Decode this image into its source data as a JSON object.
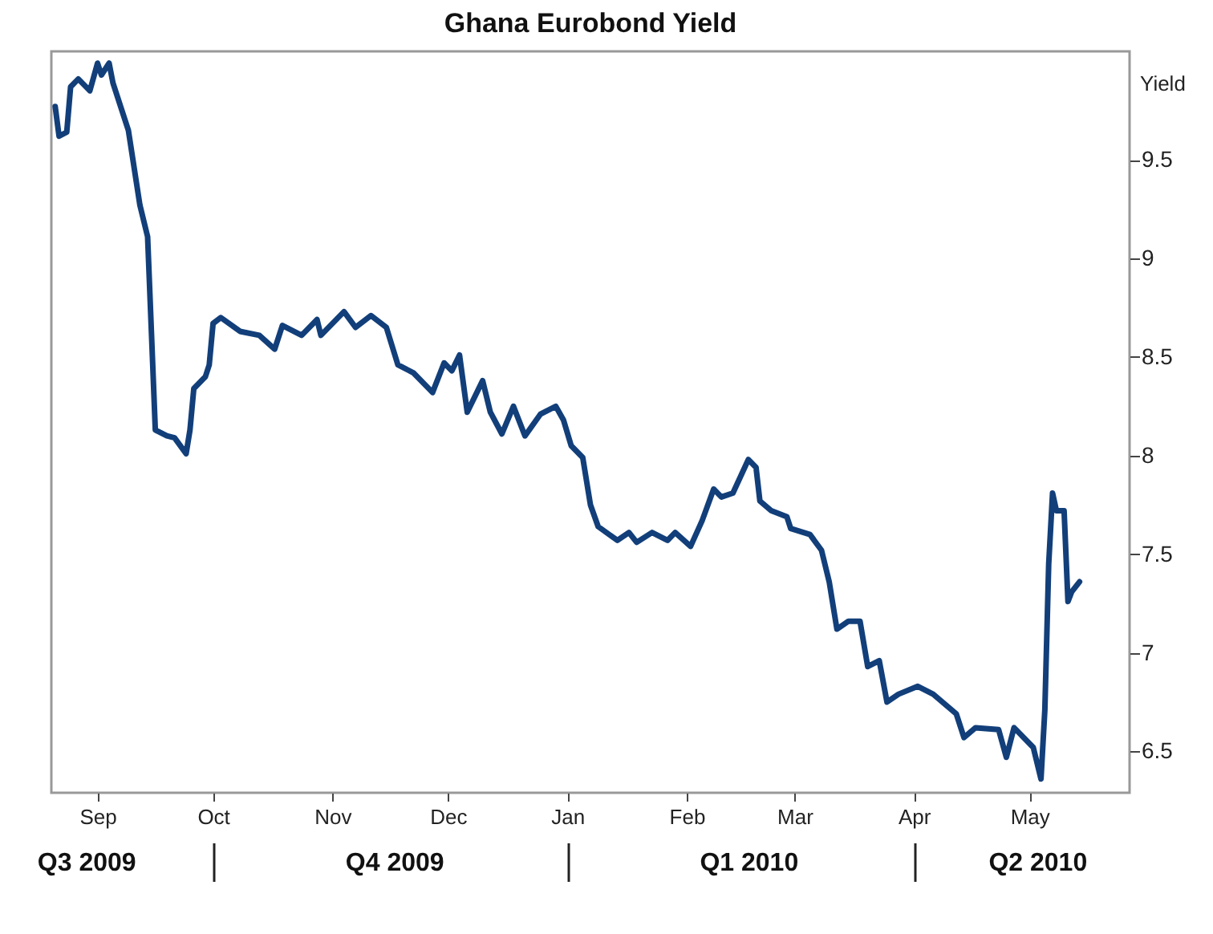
{
  "chart_data": {
    "type": "line",
    "title": "Ghana Eurobond Yield",
    "ylabel": "Yield",
    "xlim": [
      "2009-08-20",
      "2010-05-27"
    ],
    "ylim": [
      6.29,
      10.05
    ],
    "xticks": [
      {
        "value": "2009-09-01",
        "label": "Sep"
      },
      {
        "value": "2009-10-01",
        "label": "Oct"
      },
      {
        "value": "2009-11-01",
        "label": "Nov"
      },
      {
        "value": "2009-12-01",
        "label": "Dec"
      },
      {
        "value": "2010-01-01",
        "label": "Jan"
      },
      {
        "value": "2010-02-01",
        "label": "Feb"
      },
      {
        "value": "2010-03-01",
        "label": "Mar"
      },
      {
        "value": "2010-04-01",
        "label": "Apr"
      },
      {
        "value": "2010-05-01",
        "label": "May"
      }
    ],
    "yticks": [
      6.5,
      7,
      7.5,
      8,
      8.5,
      9,
      9.5
    ],
    "x2lim": [
      "2009-08-20",
      "2010-05-27"
    ],
    "x2ticks": [
      {
        "value": "2009-08-29",
        "label": "Q3 2009"
      },
      {
        "value": "2009-10-01",
        "label": null
      },
      {
        "value": "2009-11-17",
        "label": "Q4 2009"
      },
      {
        "value": "2010-01-01",
        "label": null
      },
      {
        "value": "2010-02-17",
        "label": "Q1 2010"
      },
      {
        "value": "2010-04-01",
        "label": null
      },
      {
        "value": "2010-05-03",
        "label": "Q2 2010"
      }
    ],
    "grid": false,
    "marker": "none",
    "line_style": "solid",
    "x": [
      "2009-08-21",
      "2009-08-22",
      "2009-08-24",
      "2009-08-25",
      "2009-08-27",
      "2009-08-30",
      "2009-09-01",
      "2009-09-02",
      "2009-09-04",
      "2009-09-05",
      "2009-09-09",
      "2009-09-12",
      "2009-09-14",
      "2009-09-15",
      "2009-09-16",
      "2009-09-19",
      "2009-09-21",
      "2009-09-24",
      "2009-09-25",
      "2009-09-26",
      "2009-09-29",
      "2009-09-30",
      "2009-10-01",
      "2009-10-03",
      "2009-10-08",
      "2009-10-13",
      "2009-10-17",
      "2009-10-19",
      "2009-10-24",
      "2009-10-28",
      "2009-10-29",
      "2009-11-04",
      "2009-11-07",
      "2009-11-11",
      "2009-11-15",
      "2009-11-18",
      "2009-11-22",
      "2009-11-27",
      "2009-11-30",
      "2009-12-02",
      "2009-12-04",
      "2009-12-06",
      "2009-12-10",
      "2009-12-12",
      "2009-12-15",
      "2009-12-18",
      "2009-12-21",
      "2009-12-25",
      "2009-12-29",
      "2009-12-31",
      "2010-01-02",
      "2010-01-05",
      "2010-01-07",
      "2010-01-09",
      "2010-01-14",
      "2010-01-17",
      "2010-01-19",
      "2010-01-23",
      "2010-01-27",
      "2010-01-29",
      "2010-02-02",
      "2010-02-05",
      "2010-02-08",
      "2010-02-10",
      "2010-02-13",
      "2010-02-17",
      "2010-02-19",
      "2010-02-20",
      "2010-02-23",
      "2010-02-27",
      "2010-02-28",
      "2010-03-05",
      "2010-03-08",
      "2010-03-10",
      "2010-03-12",
      "2010-03-15",
      "2010-03-18",
      "2010-03-20",
      "2010-03-23",
      "2010-03-25",
      "2010-03-28",
      "2010-04-02",
      "2010-04-06",
      "2010-04-12",
      "2010-04-14",
      "2010-04-17",
      "2010-04-23",
      "2010-04-25",
      "2010-04-27",
      "2010-05-02",
      "2010-05-04",
      "2010-05-05",
      "2010-05-06",
      "2010-05-07",
      "2010-05-08",
      "2010-05-10",
      "2010-05-11",
      "2010-05-12",
      "2010-05-14"
    ],
    "series": [
      {
        "color": "#123f7a",
        "values": [
          9.77,
          9.62,
          9.64,
          9.87,
          9.91,
          9.85,
          9.99,
          9.93,
          9.99,
          9.89,
          9.65,
          9.27,
          9.11,
          8.62,
          8.13,
          8.1,
          8.09,
          8.01,
          8.13,
          8.34,
          8.4,
          8.46,
          8.67,
          8.7,
          8.63,
          8.61,
          8.54,
          8.66,
          8.61,
          8.69,
          8.61,
          8.73,
          8.65,
          8.71,
          8.65,
          8.46,
          8.42,
          8.32,
          8.47,
          8.43,
          8.51,
          8.22,
          8.38,
          8.22,
          8.11,
          8.25,
          8.1,
          8.21,
          8.25,
          8.18,
          8.05,
          7.99,
          7.75,
          7.64,
          7.57,
          7.61,
          7.56,
          7.61,
          7.57,
          7.61,
          7.54,
          7.67,
          7.83,
          7.79,
          7.81,
          7.98,
          7.94,
          7.77,
          7.72,
          7.69,
          7.63,
          7.6,
          7.52,
          7.36,
          7.12,
          7.16,
          7.16,
          6.93,
          6.96,
          6.75,
          6.79,
          6.83,
          6.79,
          6.69,
          6.57,
          6.62,
          6.61,
          6.47,
          6.62,
          6.52,
          6.36,
          6.71,
          7.45,
          7.81,
          7.72,
          7.72,
          7.26,
          7.31,
          7.36
        ]
      }
    ]
  }
}
